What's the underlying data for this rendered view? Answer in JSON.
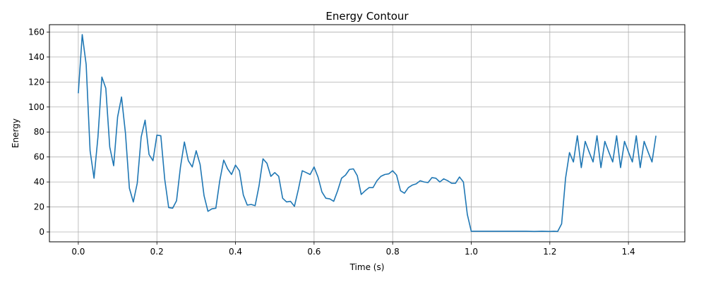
{
  "chart_data": {
    "type": "line",
    "title": "Energy Contour",
    "xlabel": "Time (s)",
    "ylabel": "Energy",
    "xlim": [
      -0.0735,
      1.5435
    ],
    "ylim": [
      -7.9,
      165.9
    ],
    "xticks": [
      0.0,
      0.2,
      0.4,
      0.6,
      0.8,
      1.0,
      1.2,
      1.4
    ],
    "xtick_labels": [
      "0.0",
      "0.2",
      "0.4",
      "0.6",
      "0.8",
      "1.0",
      "1.2",
      "1.4"
    ],
    "yticks": [
      0,
      20,
      40,
      60,
      80,
      100,
      120,
      140,
      160
    ],
    "ytick_labels": [
      "0",
      "20",
      "40",
      "60",
      "80",
      "100",
      "120",
      "140",
      "160"
    ],
    "grid": true,
    "series_color": "#1f77b4",
    "series": [
      {
        "x": [
          0.0,
          0.01,
          0.02,
          0.03,
          0.04,
          0.05,
          0.06,
          0.07,
          0.08,
          0.09,
          0.1,
          0.11,
          0.12,
          0.13,
          0.14,
          0.15,
          0.16,
          0.17,
          0.18,
          0.19,
          0.2,
          0.21,
          0.22,
          0.23,
          0.24,
          0.25,
          0.26,
          0.27,
          0.28,
          0.29,
          0.3,
          0.31,
          0.32,
          0.33,
          0.34,
          0.35,
          0.36,
          0.37,
          0.38,
          0.39,
          0.4,
          0.41,
          0.42,
          0.43,
          0.44,
          0.45,
          0.46,
          0.47,
          0.48,
          0.49,
          0.5,
          0.51,
          0.52,
          0.53,
          0.54,
          0.55,
          0.56,
          0.57,
          0.58,
          0.59,
          0.6,
          0.61,
          0.62,
          0.63,
          0.64,
          0.65,
          0.66,
          0.67,
          0.68,
          0.69,
          0.7,
          0.71,
          0.72,
          0.73,
          0.74,
          0.75,
          0.76,
          0.77,
          0.78,
          0.79,
          0.8,
          0.81,
          0.82,
          0.83,
          0.84,
          0.85,
          0.86,
          0.87,
          0.88,
          0.89,
          0.9,
          0.91,
          0.92,
          0.93,
          0.94,
          0.95,
          0.96,
          0.97,
          0.98,
          0.99,
          1.0,
          1.02,
          1.04,
          1.06,
          1.08,
          1.1,
          1.12,
          1.14,
          1.16,
          1.18,
          1.2,
          1.21,
          1.22,
          1.23,
          1.24,
          1.25,
          1.26,
          1.27,
          1.28,
          1.29,
          1.3,
          1.31,
          1.32,
          1.33,
          1.34,
          1.35,
          1.36,
          1.37,
          1.38,
          1.39,
          1.4,
          1.41,
          1.42,
          1.43,
          1.44,
          1.45,
          1.46,
          1.47
        ],
        "y": [
          111,
          158,
          134,
          65,
          43,
          76,
          124,
          115,
          68,
          53,
          92,
          108,
          79,
          35,
          24,
          39,
          76,
          89.5,
          62,
          57,
          77.5,
          77,
          42,
          19.5,
          19,
          25,
          52,
          72,
          57,
          52,
          65,
          54,
          29,
          16.5,
          18.5,
          19,
          41,
          57.5,
          50.5,
          46,
          53.5,
          49,
          29.5,
          21.5,
          22,
          21,
          37,
          58.5,
          55,
          44.5,
          47.5,
          44.5,
          27,
          24,
          24.5,
          20.5,
          34,
          49,
          47.5,
          46,
          52,
          44,
          32,
          27,
          26.5,
          24.5,
          33,
          43,
          45.5,
          50,
          50.5,
          45,
          30,
          33,
          35.5,
          35.5,
          41,
          44.5,
          46,
          46.5,
          49,
          45.5,
          33,
          31,
          35.5,
          37.5,
          38.5,
          41,
          40,
          39.5,
          43.5,
          43,
          40,
          42.5,
          41,
          39,
          39,
          44,
          40,
          14,
          0.5,
          0.5,
          0.5,
          0.5,
          0.5,
          0.5,
          0.5,
          0.5,
          0.4,
          0.5,
          0.4,
          0.5,
          0.4,
          6.5,
          43,
          63.5,
          56,
          77,
          51.5,
          72.5,
          64,
          56,
          77,
          51.5,
          72.5,
          64,
          56,
          77,
          51.5,
          72.5,
          64,
          56,
          77,
          51.5,
          72.5,
          64,
          56,
          77
        ]
      }
    ]
  }
}
